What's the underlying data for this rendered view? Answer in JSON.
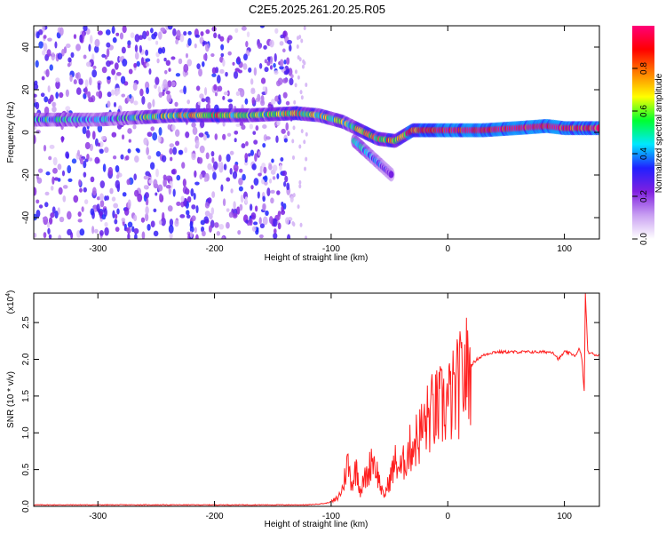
{
  "title": "C2E5.2025.261.20.25.R05",
  "chart_data": [
    {
      "type": "heatmap",
      "xlabel": "Height of straight line (km)",
      "ylabel": "Frequency (Hz)",
      "xlim": [
        -355,
        130
      ],
      "ylim": [
        -50,
        50
      ],
      "xticks": [
        -300,
        -200,
        -100,
        0,
        100
      ],
      "yticks": [
        -40,
        -20,
        0,
        20,
        40
      ],
      "colorbar": {
        "label": "Normalized spectral amplitude",
        "range": [
          0,
          1
        ],
        "ticks": [
          0.0,
          0.2,
          0.4,
          0.6,
          0.8
        ],
        "tick_labels": [
          "0.0",
          "0.2",
          "0.4",
          "0.6",
          "0.8"
        ],
        "colormap": [
          "#ffffff",
          "#c9a0f2",
          "#8020e0",
          "#2020ff",
          "#00e8ff",
          "#00ff30",
          "#ffff00",
          "#ff8000",
          "#ff0000",
          "#ff0078"
        ]
      },
      "noise_region_km": [
        -355,
        -133
      ],
      "signal_track": [
        {
          "x": -355,
          "y": 6,
          "a": 0.45
        },
        {
          "x": -300,
          "y": 6,
          "a": 0.35
        },
        {
          "x": -230,
          "y": 8,
          "a": 0.6
        },
        {
          "x": -200,
          "y": 8,
          "a": 0.7
        },
        {
          "x": -170,
          "y": 8,
          "a": 0.5
        },
        {
          "x": -130,
          "y": 9,
          "a": 0.65
        },
        {
          "x": -110,
          "y": 8,
          "a": 0.6
        },
        {
          "x": -90,
          "y": 5,
          "a": 0.55
        },
        {
          "x": -75,
          "y": 1,
          "a": 0.6
        },
        {
          "x": -60,
          "y": -3,
          "a": 0.65
        },
        {
          "x": -45,
          "y": -4,
          "a": 0.7
        },
        {
          "x": -30,
          "y": 1,
          "a": 0.8
        },
        {
          "x": -15,
          "y": 1,
          "a": 0.95
        },
        {
          "x": 0,
          "y": 1,
          "a": 1.0
        },
        {
          "x": 30,
          "y": 1,
          "a": 1.0
        },
        {
          "x": 60,
          "y": 2,
          "a": 0.95
        },
        {
          "x": 85,
          "y": 3,
          "a": 1.0
        },
        {
          "x": 100,
          "y": 2,
          "a": 0.95
        },
        {
          "x": 130,
          "y": 2,
          "a": 0.9
        }
      ],
      "secondary_track": [
        {
          "x": -80,
          "y": -4,
          "a": 0.4
        },
        {
          "x": -70,
          "y": -9,
          "a": 0.45
        },
        {
          "x": -60,
          "y": -14,
          "a": 0.35
        },
        {
          "x": -48,
          "y": -20,
          "a": 0.25
        }
      ]
    },
    {
      "type": "line",
      "xlabel": "Height of straight line (km)",
      "ylabel": "SNR (10 * v/v)",
      "yscale_label": "(x10",
      "yscale_exp": "4",
      "xlim": [
        -355,
        130
      ],
      "ylim": [
        0,
        2.9
      ],
      "xticks": [
        -300,
        -200,
        -100,
        0,
        100
      ],
      "yticks": [
        0.0,
        0.5,
        1.0,
        1.5,
        2.0,
        2.5
      ],
      "ytick_labels": [
        "0.0",
        "0.5",
        "1.0",
        "1.5",
        "2.0",
        "2.5"
      ],
      "color": "#ff2020",
      "series": [
        {
          "name": "SNR",
          "x": [
            -355,
            -300,
            -250,
            -200,
            -150,
            -120,
            -105,
            -98,
            -94,
            -90,
            -86,
            -82,
            -78,
            -75,
            -72,
            -68,
            -65,
            -62,
            -58,
            -55,
            -50,
            -45,
            -40,
            -35,
            -30,
            -25,
            -20,
            -15,
            -10,
            -5,
            0,
            5,
            10,
            15,
            20,
            25,
            30,
            35,
            40,
            50,
            60,
            70,
            80,
            90,
            95,
            100,
            105,
            110,
            113,
            115,
            117,
            118,
            120,
            125,
            130
          ],
          "y": [
            0.02,
            0.02,
            0.02,
            0.02,
            0.02,
            0.02,
            0.04,
            0.07,
            0.12,
            0.25,
            0.6,
            0.3,
            0.55,
            0.2,
            0.35,
            0.45,
            0.7,
            0.55,
            0.3,
            0.12,
            0.35,
            0.6,
            0.5,
            0.7,
            0.85,
            0.95,
            1.1,
            1.25,
            1.3,
            1.35,
            1.4,
            1.5,
            1.65,
            1.8,
            1.92,
            2.0,
            2.05,
            2.08,
            2.1,
            2.1,
            2.1,
            2.1,
            2.1,
            2.1,
            2.0,
            2.1,
            2.08,
            2.05,
            2.15,
            2.0,
            1.55,
            2.9,
            2.1,
            2.07,
            2.05
          ]
        }
      ]
    }
  ]
}
